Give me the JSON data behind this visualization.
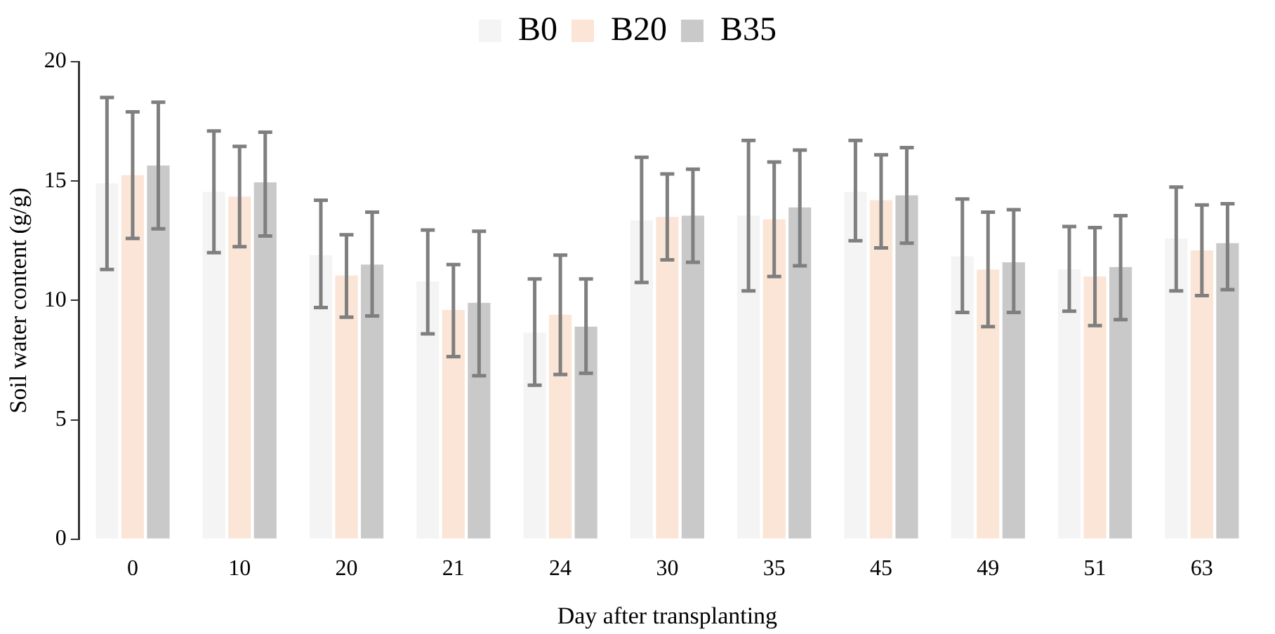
{
  "chart_data": {
    "type": "bar",
    "xlabel": "Day after transplanting",
    "ylabel": "Soil water content (g/g)",
    "categories": [
      "0",
      "10",
      "20",
      "21",
      "24",
      "30",
      "35",
      "45",
      "49",
      "51",
      "63"
    ],
    "series": [
      {
        "name": "B0",
        "color": "#f4f4f4",
        "values": [
          14.9,
          14.55,
          11.9,
          10.8,
          8.65,
          13.35,
          13.55,
          14.55,
          11.85,
          11.3,
          12.6
        ],
        "errors": [
          [
            11.3,
            18.5
          ],
          [
            12.0,
            17.1
          ],
          [
            9.7,
            14.2
          ],
          [
            8.6,
            12.95
          ],
          [
            6.45,
            10.9
          ],
          [
            10.75,
            16.0
          ],
          [
            10.4,
            16.7
          ],
          [
            12.5,
            16.7
          ],
          [
            9.5,
            14.25
          ],
          [
            9.55,
            13.1
          ],
          [
            10.4,
            14.75
          ]
        ]
      },
      {
        "name": "B20",
        "color": "#fbe5d6",
        "values": [
          15.25,
          14.35,
          11.05,
          9.6,
          9.4,
          13.5,
          13.4,
          14.2,
          11.3,
          11.0,
          12.1
        ],
        "errors": [
          [
            12.6,
            17.9
          ],
          [
            12.25,
            16.45
          ],
          [
            9.3,
            12.75
          ],
          [
            7.65,
            11.5
          ],
          [
            6.9,
            11.9
          ],
          [
            11.7,
            15.3
          ],
          [
            11.0,
            15.8
          ],
          [
            12.2,
            16.1
          ],
          [
            8.9,
            13.7
          ],
          [
            8.95,
            13.05
          ],
          [
            10.2,
            14.0
          ]
        ]
      },
      {
        "name": "B35",
        "color": "#c9c9c9",
        "values": [
          15.65,
          14.95,
          11.5,
          9.9,
          8.9,
          13.55,
          13.9,
          14.4,
          11.6,
          11.4,
          12.4
        ],
        "errors": [
          [
            13.0,
            18.3
          ],
          [
            12.7,
            17.05
          ],
          [
            9.35,
            13.7
          ],
          [
            6.85,
            12.9
          ],
          [
            6.95,
            10.9
          ],
          [
            11.6,
            15.5
          ],
          [
            11.45,
            16.3
          ],
          [
            12.4,
            16.4
          ],
          [
            9.5,
            13.8
          ],
          [
            9.2,
            13.55
          ],
          [
            10.45,
            14.05
          ]
        ]
      }
    ],
    "ylim": [
      0,
      20
    ],
    "yticks": [
      0,
      5,
      10,
      15,
      20
    ],
    "grid": false,
    "legend": "top"
  }
}
